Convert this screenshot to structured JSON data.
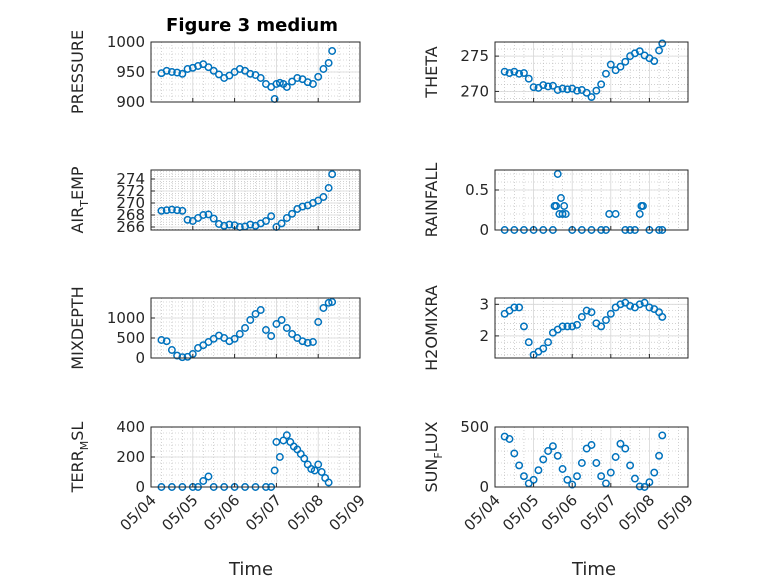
{
  "figure_title": "Figure 3 medium",
  "colors": {
    "marker": "#0072BD",
    "axis": "#262626",
    "grid": "#b5b5b5"
  },
  "chart_data": [
    {
      "type": "scatter",
      "marker": "open-circle",
      "grid": true,
      "title": "Figure 3 medium",
      "ylabel": "PRESSURE",
      "ylim": [
        900,
        1000
      ],
      "yticks": [
        900,
        950,
        1000
      ],
      "xlim": [
        "05/04",
        "05/09"
      ],
      "xticks": [
        "05/04",
        "05/05",
        "05/06",
        "05/07",
        "05/08",
        "05/09"
      ],
      "x": [
        "05/04 06:00",
        "05/04 09:00",
        "05/04 12:00",
        "05/04 15:00",
        "05/04 18:00",
        "05/04 21:00",
        "05/05 00:00",
        "05/05 03:00",
        "05/05 06:00",
        "05/05 09:00",
        "05/05 12:00",
        "05/05 15:00",
        "05/05 18:00",
        "05/05 21:00",
        "05/06 00:00",
        "05/06 03:00",
        "05/06 06:00",
        "05/06 09:00",
        "05/06 12:00",
        "05/06 15:00",
        "05/06 18:00",
        "05/06 21:00",
        "05/06 23:00",
        "05/07 00:00",
        "05/07 02:00",
        "05/07 04:00",
        "05/07 06:00",
        "05/07 09:00",
        "05/07 12:00",
        "05/07 15:00",
        "05/07 18:00",
        "05/07 21:00",
        "05/08 00:00",
        "05/08 03:00",
        "05/08 06:00",
        "05/08 08:00"
      ],
      "y": [
        948,
        952,
        950,
        949,
        947,
        955,
        957,
        960,
        963,
        958,
        952,
        946,
        940,
        944,
        950,
        955,
        952,
        947,
        945,
        940,
        930,
        925,
        905,
        930,
        932,
        930,
        925,
        934,
        940,
        938,
        933,
        930,
        942,
        955,
        965,
        985
      ]
    },
    {
      "type": "scatter",
      "marker": "open-circle",
      "grid": true,
      "ylabel": "THETA",
      "ylim": [
        268.5,
        277
      ],
      "yticks": [
        270,
        275
      ],
      "xlim": [
        "05/04",
        "05/09"
      ],
      "xticks": [
        "05/04",
        "05/05",
        "05/06",
        "05/07",
        "05/08",
        "05/09"
      ],
      "x": [
        "05/04 06:00",
        "05/04 09:00",
        "05/04 12:00",
        "05/04 15:00",
        "05/04 18:00",
        "05/04 21:00",
        "05/05 00:00",
        "05/05 03:00",
        "05/05 06:00",
        "05/05 09:00",
        "05/05 12:00",
        "05/05 15:00",
        "05/05 18:00",
        "05/05 21:00",
        "05/06 00:00",
        "05/06 03:00",
        "05/06 06:00",
        "05/06 09:00",
        "05/06 12:00",
        "05/06 15:00",
        "05/06 18:00",
        "05/06 21:00",
        "05/07 00:00",
        "05/07 03:00",
        "05/07 06:00",
        "05/07 09:00",
        "05/07 12:00",
        "05/07 15:00",
        "05/07 18:00",
        "05/07 21:00",
        "05/08 00:00",
        "05/08 03:00",
        "05/08 06:00",
        "05/08 08:00"
      ],
      "y": [
        272.8,
        272.6,
        272.8,
        272.5,
        272.6,
        271.8,
        270.6,
        270.5,
        270.9,
        270.7,
        270.8,
        270.2,
        270.4,
        270.3,
        270.4,
        270.1,
        270.2,
        269.8,
        269.2,
        270.1,
        271.0,
        272.5,
        273.8,
        273.0,
        273.5,
        274.2,
        275.0,
        275.4,
        275.7,
        275.1,
        274.7,
        274.3,
        275.8,
        276.8
      ]
    },
    {
      "type": "scatter",
      "marker": "open-circle",
      "grid": true,
      "ylabel": "AIR_TEMP",
      "ylim": [
        265.5,
        275.5
      ],
      "yticks": [
        266,
        268,
        270,
        272,
        274
      ],
      "xlim": [
        "05/04",
        "05/09"
      ],
      "xticks": [
        "05/04",
        "05/05",
        "05/06",
        "05/07",
        "05/08",
        "05/09"
      ],
      "x": [
        "05/04 06:00",
        "05/04 09:00",
        "05/04 12:00",
        "05/04 15:00",
        "05/04 18:00",
        "05/04 21:00",
        "05/05 00:00",
        "05/05 03:00",
        "05/05 06:00",
        "05/05 09:00",
        "05/05 12:00",
        "05/05 15:00",
        "05/05 18:00",
        "05/05 21:00",
        "05/06 00:00",
        "05/06 03:00",
        "05/06 06:00",
        "05/06 09:00",
        "05/06 12:00",
        "05/06 15:00",
        "05/06 18:00",
        "05/06 21:00",
        "05/07 00:00",
        "05/07 03:00",
        "05/07 06:00",
        "05/07 09:00",
        "05/07 12:00",
        "05/07 15:00",
        "05/07 18:00",
        "05/07 21:00",
        "05/08 00:00",
        "05/08 03:00",
        "05/08 06:00",
        "05/08 08:00"
      ],
      "y": [
        268.7,
        268.8,
        268.9,
        268.8,
        268.7,
        267.2,
        267.0,
        267.5,
        268.0,
        268.1,
        267.4,
        266.5,
        266.2,
        266.4,
        266.3,
        266.0,
        266.1,
        266.4,
        266.2,
        266.6,
        267.0,
        267.8,
        266.0,
        266.6,
        267.5,
        268.2,
        269.0,
        269.4,
        269.6,
        270.0,
        270.4,
        271.0,
        272.5,
        274.8
      ]
    },
    {
      "type": "scatter",
      "marker": "open-circle",
      "grid": true,
      "ylabel": "RAINFALL",
      "ylim": [
        0,
        0.75
      ],
      "yticks": [
        0,
        0.5
      ],
      "xlim": [
        "05/04",
        "05/09"
      ],
      "xticks": [
        "05/04",
        "05/05",
        "05/06",
        "05/07",
        "05/08",
        "05/09"
      ],
      "x": [
        "05/04 06:00",
        "05/04 12:00",
        "05/04 18:00",
        "05/05 00:00",
        "05/05 06:00",
        "05/05 12:00",
        "05/05 13:00",
        "05/05 14:00",
        "05/05 15:00",
        "05/05 16:00",
        "05/05 17:00",
        "05/05 18:00",
        "05/05 19:00",
        "05/05 20:00",
        "05/06 00:00",
        "05/06 06:00",
        "05/06 12:00",
        "05/06 18:00",
        "05/06 21:00",
        "05/06 23:00",
        "05/07 03:00",
        "05/07 09:00",
        "05/07 12:00",
        "05/07 15:00",
        "05/07 18:00",
        "05/07 19:00",
        "05/07 20:00",
        "05/08 00:00",
        "05/08 06:00",
        "05/08 08:00"
      ],
      "y": [
        0,
        0,
        0,
        0,
        0,
        0,
        0.3,
        0.3,
        0.7,
        0.2,
        0.4,
        0.2,
        0.3,
        0.2,
        0,
        0,
        0,
        0,
        0,
        0.2,
        0.2,
        0,
        0,
        0,
        0.2,
        0.3,
        0.3,
        0,
        0,
        0
      ]
    },
    {
      "type": "scatter",
      "marker": "open-circle",
      "grid": true,
      "ylabel": "MIXDEPTH",
      "ylim": [
        0,
        1500
      ],
      "yticks": [
        0,
        500,
        1000
      ],
      "xlim": [
        "05/04",
        "05/09"
      ],
      "xticks": [
        "05/04",
        "05/05",
        "05/06",
        "05/07",
        "05/08",
        "05/09"
      ],
      "x": [
        "05/04 06:00",
        "05/04 09:00",
        "05/04 12:00",
        "05/04 15:00",
        "05/04 18:00",
        "05/04 21:00",
        "05/05 00:00",
        "05/05 03:00",
        "05/05 06:00",
        "05/05 09:00",
        "05/05 12:00",
        "05/05 15:00",
        "05/05 18:00",
        "05/05 21:00",
        "05/06 00:00",
        "05/06 03:00",
        "05/06 06:00",
        "05/06 09:00",
        "05/06 12:00",
        "05/06 15:00",
        "05/06 18:00",
        "05/06 21:00",
        "05/07 00:00",
        "05/07 03:00",
        "05/07 06:00",
        "05/07 09:00",
        "05/07 12:00",
        "05/07 15:00",
        "05/07 18:00",
        "05/07 21:00",
        "05/08 00:00",
        "05/08 03:00",
        "05/08 06:00",
        "05/08 08:00"
      ],
      "y": [
        450,
        420,
        200,
        60,
        20,
        30,
        100,
        250,
        320,
        400,
        480,
        560,
        500,
        420,
        480,
        600,
        750,
        950,
        1100,
        1200,
        700,
        550,
        850,
        950,
        750,
        600,
        500,
        420,
        380,
        400,
        900,
        1250,
        1380,
        1400
      ]
    },
    {
      "type": "scatter",
      "marker": "open-circle",
      "grid": true,
      "ylabel": "H2OMIXRA",
      "ylim": [
        1.3,
        3.2
      ],
      "yticks": [
        2,
        3
      ],
      "xlim": [
        "05/04",
        "05/09"
      ],
      "xticks": [
        "05/04",
        "05/05",
        "05/06",
        "05/07",
        "05/08",
        "05/09"
      ],
      "x": [
        "05/04 06:00",
        "05/04 09:00",
        "05/04 12:00",
        "05/04 15:00",
        "05/04 18:00",
        "05/04 21:00",
        "05/05 00:00",
        "05/05 03:00",
        "05/05 06:00",
        "05/05 09:00",
        "05/05 12:00",
        "05/05 15:00",
        "05/05 18:00",
        "05/05 21:00",
        "05/06 00:00",
        "05/06 03:00",
        "05/06 06:00",
        "05/06 09:00",
        "05/06 12:00",
        "05/06 15:00",
        "05/06 18:00",
        "05/06 21:00",
        "05/07 00:00",
        "05/07 03:00",
        "05/07 06:00",
        "05/07 09:00",
        "05/07 12:00",
        "05/07 15:00",
        "05/07 18:00",
        "05/07 21:00",
        "05/08 00:00",
        "05/08 03:00",
        "05/08 06:00",
        "05/08 08:00"
      ],
      "y": [
        2.7,
        2.8,
        2.9,
        2.9,
        2.3,
        1.8,
        1.4,
        1.5,
        1.6,
        1.8,
        2.1,
        2.2,
        2.3,
        2.3,
        2.3,
        2.35,
        2.6,
        2.8,
        2.75,
        2.4,
        2.3,
        2.5,
        2.7,
        2.9,
        3.0,
        3.05,
        2.95,
        2.9,
        3.0,
        3.05,
        2.9,
        2.85,
        2.75,
        2.6
      ]
    },
    {
      "type": "scatter",
      "marker": "open-circle",
      "grid": true,
      "ylabel": "TERR_MSL",
      "ylim": [
        0,
        400
      ],
      "yticks": [
        0,
        200,
        400
      ],
      "xlim": [
        "05/04",
        "05/09"
      ],
      "xticks": [
        "05/04",
        "05/05",
        "05/06",
        "05/07",
        "05/08",
        "05/09"
      ],
      "x": [
        "05/04 06:00",
        "05/04 12:00",
        "05/04 18:00",
        "05/05 00:00",
        "05/05 03:00",
        "05/05 06:00",
        "05/05 09:00",
        "05/05 12:00",
        "05/05 18:00",
        "05/06 00:00",
        "05/06 06:00",
        "05/06 12:00",
        "05/06 18:00",
        "05/06 21:00",
        "05/06 23:00",
        "05/07 00:00",
        "05/07 02:00",
        "05/07 04:00",
        "05/07 06:00",
        "05/07 08:00",
        "05/07 10:00",
        "05/07 12:00",
        "05/07 14:00",
        "05/07 16:00",
        "05/07 18:00",
        "05/07 20:00",
        "05/07 22:00",
        "05/08 00:00",
        "05/08 02:00",
        "05/08 04:00",
        "05/08 06:00"
      ],
      "y": [
        0,
        0,
        0,
        0,
        0,
        40,
        70,
        0,
        0,
        0,
        0,
        0,
        0,
        0,
        110,
        300,
        200,
        310,
        345,
        300,
        270,
        250,
        220,
        190,
        150,
        120,
        110,
        150,
        100,
        60,
        30
      ]
    },
    {
      "type": "scatter",
      "marker": "open-circle",
      "grid": true,
      "ylabel": "SUN_FLUX",
      "ylim": [
        0,
        500
      ],
      "yticks": [
        0,
        500
      ],
      "xlim": [
        "05/04",
        "05/09"
      ],
      "xticks": [
        "05/04",
        "05/05",
        "05/06",
        "05/07",
        "05/08",
        "05/09"
      ],
      "x": [
        "05/04 06:00",
        "05/04 09:00",
        "05/04 12:00",
        "05/04 15:00",
        "05/04 18:00",
        "05/04 21:00",
        "05/05 00:00",
        "05/05 03:00",
        "05/05 06:00",
        "05/05 09:00",
        "05/05 12:00",
        "05/05 15:00",
        "05/05 18:00",
        "05/05 21:00",
        "05/06 00:00",
        "05/06 03:00",
        "05/06 06:00",
        "05/06 09:00",
        "05/06 12:00",
        "05/06 15:00",
        "05/06 18:00",
        "05/06 21:00",
        "05/07 00:00",
        "05/07 03:00",
        "05/07 06:00",
        "05/07 09:00",
        "05/07 12:00",
        "05/07 15:00",
        "05/07 18:00",
        "05/07 21:00",
        "05/08 00:00",
        "05/08 03:00",
        "05/08 06:00",
        "05/08 08:00"
      ],
      "y": [
        420,
        400,
        280,
        180,
        90,
        30,
        60,
        140,
        230,
        300,
        340,
        260,
        150,
        60,
        20,
        90,
        200,
        320,
        350,
        200,
        90,
        30,
        120,
        250,
        360,
        320,
        180,
        70,
        5,
        0,
        40,
        120,
        260,
        430
      ]
    }
  ],
  "xlabels": {
    "left": "Time",
    "right": "Time"
  }
}
